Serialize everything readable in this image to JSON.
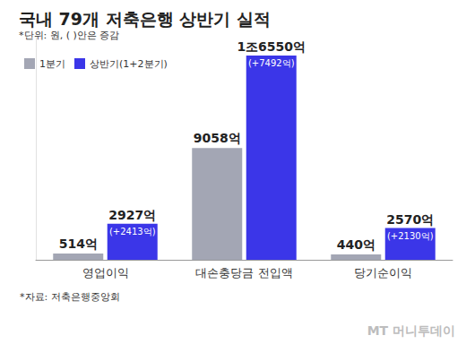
{
  "chart_data": {
    "type": "bar",
    "title": "국내 79개 저축은행 상반기 실적",
    "subtitle": "*단위: 원, ( )안은 증감",
    "categories": [
      "영업이익",
      "대손충당금 전입액",
      "당기순이익"
    ],
    "series": [
      {
        "name": "1분기",
        "color": "#a3a6b4",
        "values": [
          514,
          9058,
          440
        ],
        "value_labels": [
          "514억",
          "9058억",
          "440억"
        ]
      },
      {
        "name": "상반기(1+2분기)",
        "color": "#3b36e8",
        "values": [
          2927,
          16550,
          2570
        ],
        "value_labels": [
          "2927억",
          "1조6550억",
          "2570억"
        ],
        "change_labels": [
          "(+2413억)",
          "(+7492억)",
          "(+2130억)"
        ]
      }
    ],
    "ylim": [
      0,
      18000
    ],
    "grid": false,
    "tick_labels": "x",
    "data_labels": true,
    "legend": "top-left",
    "source": "*자료: 저축은행중앙회",
    "watermark": "MT 머니투데이"
  }
}
